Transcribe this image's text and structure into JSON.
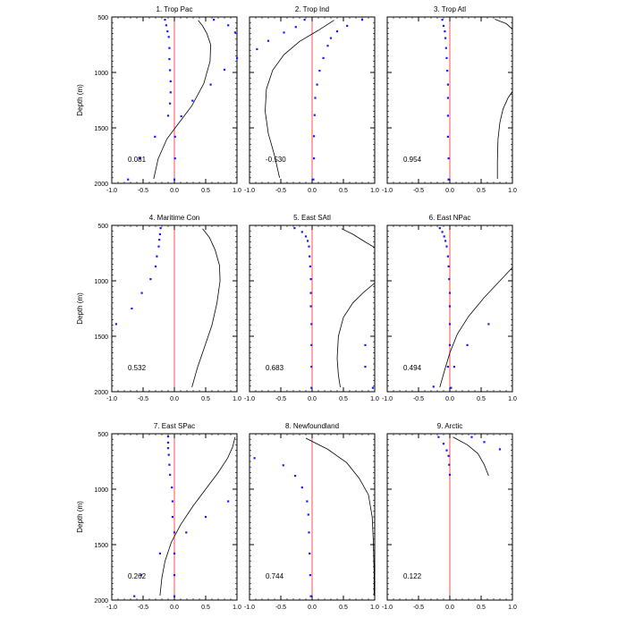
{
  "chart_data": [
    {
      "type": "line",
      "title": "1. Trop Pac",
      "value_label": "0.081",
      "ylabel": "Depth (m)",
      "xlim": [
        -1,
        1
      ],
      "ylim": [
        500,
        2000
      ],
      "y_inverted": true,
      "xticks": [
        "-1.0",
        "-0.5",
        "0.0",
        "0.5",
        "1.0"
      ],
      "yticks": [
        "500",
        "1000",
        "1500",
        "2000"
      ],
      "reference_line_x": 0,
      "line": [
        [
          0.38,
          530
        ],
        [
          0.45,
          580
        ],
        [
          0.52,
          650
        ],
        [
          0.58,
          750
        ],
        [
          0.57,
          900
        ],
        [
          0.47,
          1100
        ],
        [
          0.28,
          1300
        ],
        [
          0.08,
          1450
        ],
        [
          -0.12,
          1600
        ],
        [
          -0.26,
          1780
        ],
        [
          -0.33,
          1960
        ]
      ],
      "points": [
        [
          -0.15,
          525
        ],
        [
          0.63,
          525
        ],
        [
          0.86,
          575
        ],
        [
          -0.13,
          575
        ],
        [
          -0.11,
          630
        ],
        [
          0.97,
          640
        ],
        [
          -0.09,
          680
        ],
        [
          -0.08,
          780
        ],
        [
          1.0,
          870
        ],
        [
          -0.08,
          880
        ],
        [
          -0.07,
          980
        ],
        [
          0.8,
          975
        ],
        [
          -0.06,
          1080
        ],
        [
          0.58,
          1110
        ],
        [
          -0.06,
          1180
        ],
        [
          0.29,
          1255
        ],
        [
          -0.07,
          1280
        ],
        [
          -0.1,
          1390
        ],
        [
          0.11,
          1395
        ],
        [
          0.01,
          1580
        ],
        [
          -0.31,
          1580
        ],
        [
          -0.55,
          1775
        ],
        [
          0.01,
          1775
        ],
        [
          -0.74,
          1965
        ],
        [
          0.0,
          1965
        ]
      ]
    },
    {
      "type": "line",
      "title": "2. Trop Ind",
      "value_label": "-0.530",
      "ylabel": "",
      "xlim": [
        -1,
        1
      ],
      "ylim": [
        500,
        2000
      ],
      "y_inverted": true,
      "xticks": [
        "-1.0",
        "-0.5",
        "0.0",
        "0.5",
        "1.0"
      ],
      "yticks": [
        "500",
        "1000",
        "1500",
        "2000"
      ],
      "reference_line_x": 0,
      "line": [
        [
          0.35,
          530
        ],
        [
          0.1,
          620
        ],
        [
          -0.2,
          720
        ],
        [
          -0.45,
          840
        ],
        [
          -0.63,
          980
        ],
        [
          -0.73,
          1150
        ],
        [
          -0.75,
          1350
        ],
        [
          -0.7,
          1550
        ],
        [
          -0.6,
          1750
        ],
        [
          -0.52,
          1950
        ]
      ],
      "points": [
        [
          -0.12,
          525
        ],
        [
          0.8,
          525
        ],
        [
          0.56,
          580
        ],
        [
          -0.26,
          590
        ],
        [
          0.4,
          630
        ],
        [
          -0.45,
          640
        ],
        [
          0.3,
          690
        ],
        [
          -0.7,
          715
        ],
        [
          0.25,
          760
        ],
        [
          -0.88,
          790
        ],
        [
          0.18,
          870
        ],
        [
          0.12,
          985
        ],
        [
          0.08,
          1110
        ],
        [
          0.05,
          1230
        ],
        [
          0.04,
          1385
        ],
        [
          0.03,
          1575
        ],
        [
          0.03,
          1775
        ],
        [
          0.02,
          1965
        ]
      ]
    },
    {
      "type": "line",
      "title": "3. Trop Atl",
      "value_label": "0.954",
      "ylabel": "",
      "xlim": [
        -1,
        1
      ],
      "ylim": [
        500,
        2000
      ],
      "y_inverted": true,
      "xticks": [
        "-1.0",
        "-0.5",
        "0.0",
        "0.5",
        "1.0"
      ],
      "yticks": [
        "500",
        "1000",
        "1500",
        "2000"
      ],
      "reference_line_x": 0,
      "line": [
        [
          0.72,
          520
        ],
        [
          0.9,
          560
        ],
        [
          1.0,
          610
        ]
      ],
      "line2": [
        [
          1.0,
          1170
        ],
        [
          0.93,
          1230
        ],
        [
          0.85,
          1330
        ],
        [
          0.8,
          1450
        ],
        [
          0.77,
          1600
        ],
        [
          0.76,
          1800
        ],
        [
          0.76,
          1960
        ]
      ],
      "points": [
        [
          -0.12,
          525
        ],
        [
          -0.1,
          580
        ],
        [
          -0.08,
          630
        ],
        [
          -0.07,
          690
        ],
        [
          -0.06,
          780
        ],
        [
          -0.05,
          870
        ],
        [
          -0.04,
          985
        ],
        [
          -0.03,
          1110
        ],
        [
          -0.03,
          1230
        ],
        [
          -0.03,
          1390
        ],
        [
          -0.03,
          1580
        ],
        [
          -0.02,
          1775
        ],
        [
          -0.02,
          1965
        ]
      ]
    },
    {
      "type": "line",
      "title": "4. Maritime Con",
      "value_label": "0.532",
      "ylabel": "Depth (m)",
      "xlim": [
        -1,
        1
      ],
      "ylim": [
        500,
        2000
      ],
      "y_inverted": true,
      "xticks": [
        "-1.0",
        "-0.5",
        "0.0",
        "0.5",
        "1.0"
      ],
      "yticks": [
        "500",
        "1000",
        "1500",
        "2000"
      ],
      "reference_line_x": 0,
      "line": [
        [
          0.45,
          530
        ],
        [
          0.56,
          610
        ],
        [
          0.65,
          720
        ],
        [
          0.72,
          860
        ],
        [
          0.73,
          1000
        ],
        [
          0.68,
          1200
        ],
        [
          0.6,
          1400
        ],
        [
          0.48,
          1600
        ],
        [
          0.37,
          1780
        ],
        [
          0.28,
          1960
        ]
      ],
      "points": [
        [
          -0.22,
          525
        ],
        [
          -0.23,
          580
        ],
        [
          -0.24,
          630
        ],
        [
          -0.25,
          690
        ],
        [
          -0.28,
          780
        ],
        [
          -0.3,
          870
        ],
        [
          -0.38,
          985
        ],
        [
          -0.52,
          1110
        ],
        [
          -0.68,
          1250
        ],
        [
          -0.93,
          1390
        ]
      ]
    },
    {
      "type": "line",
      "title": "5. East SAtl",
      "value_label": "0.683",
      "ylabel": "",
      "xlim": [
        -1,
        1
      ],
      "ylim": [
        500,
        2000
      ],
      "y_inverted": true,
      "xticks": [
        "-1.0",
        "-0.5",
        "0.0",
        "0.5",
        "1.0"
      ],
      "yticks": [
        "500",
        "1000",
        "1500",
        "2000"
      ],
      "reference_line_x": 0,
      "line": [
        [
          0.47,
          530
        ],
        [
          0.65,
          580
        ],
        [
          0.85,
          650
        ],
        [
          1.0,
          700
        ]
      ],
      "line2": [
        [
          1.0,
          1020
        ],
        [
          0.83,
          1100
        ],
        [
          0.65,
          1200
        ],
        [
          0.5,
          1330
        ],
        [
          0.42,
          1500
        ],
        [
          0.4,
          1700
        ],
        [
          0.42,
          1850
        ],
        [
          0.45,
          1960
        ]
      ],
      "points": [
        [
          -0.28,
          525
        ],
        [
          -0.16,
          560
        ],
        [
          -0.1,
          600
        ],
        [
          -0.07,
          640
        ],
        [
          -0.05,
          690
        ],
        [
          -0.04,
          780
        ],
        [
          -0.03,
          870
        ],
        [
          -0.02,
          985
        ],
        [
          -0.02,
          1110
        ],
        [
          -0.02,
          1230
        ],
        [
          -0.01,
          1390
        ],
        [
          -0.01,
          1580
        ],
        [
          -0.01,
          1775
        ],
        [
          -0.01,
          1965
        ],
        [
          0.85,
          1580
        ],
        [
          0.85,
          1775
        ],
        [
          0.97,
          1965
        ]
      ]
    },
    {
      "type": "line",
      "title": "6. East NPac",
      "value_label": "0.494",
      "ylabel": "",
      "xlim": [
        -1,
        1
      ],
      "ylim": [
        500,
        2000
      ],
      "y_inverted": true,
      "xticks": [
        "-1.0",
        "-0.5",
        "0.0",
        "0.5",
        "1.0"
      ],
      "yticks": [
        "500",
        "1000",
        "1500",
        "2000"
      ],
      "reference_line_x": 0,
      "line": [
        [
          1.0,
          880
        ],
        [
          0.8,
          1000
        ],
        [
          0.55,
          1150
        ],
        [
          0.3,
          1320
        ],
        [
          0.12,
          1480
        ],
        [
          0.0,
          1650
        ],
        [
          -0.08,
          1800
        ],
        [
          -0.16,
          1960
        ]
      ],
      "points": [
        [
          -0.16,
          525
        ],
        [
          -0.12,
          560
        ],
        [
          -0.09,
          600
        ],
        [
          -0.07,
          640
        ],
        [
          -0.05,
          690
        ],
        [
          -0.03,
          780
        ],
        [
          -0.02,
          870
        ],
        [
          -0.01,
          985
        ],
        [
          0.0,
          1110
        ],
        [
          0.0,
          1230
        ],
        [
          0.0,
          1390
        ],
        [
          0.0,
          1580
        ],
        [
          0.62,
          1390
        ],
        [
          0.28,
          1580
        ],
        [
          -0.03,
          1775
        ],
        [
          0.07,
          1775
        ],
        [
          -0.26,
          1955
        ],
        [
          0.02,
          1965
        ]
      ]
    },
    {
      "type": "line",
      "title": "7. East SPac",
      "value_label": "0.262",
      "ylabel": "Depth (m)",
      "xlim": [
        -1,
        1
      ],
      "ylim": [
        500,
        2000
      ],
      "y_inverted": true,
      "xticks": [
        "-1.0",
        "-0.5",
        "0.0",
        "0.5",
        "1.0"
      ],
      "yticks": [
        "500",
        "1000",
        "1500",
        "2000"
      ],
      "reference_line_x": 0,
      "line": [
        [
          0.97,
          530
        ],
        [
          0.93,
          620
        ],
        [
          0.85,
          720
        ],
        [
          0.7,
          850
        ],
        [
          0.5,
          1000
        ],
        [
          0.3,
          1150
        ],
        [
          0.1,
          1320
        ],
        [
          -0.05,
          1480
        ],
        [
          -0.15,
          1650
        ],
        [
          -0.2,
          1800
        ],
        [
          -0.23,
          1960
        ]
      ],
      "points": [
        [
          -0.1,
          525
        ],
        [
          -0.1,
          580
        ],
        [
          -0.1,
          630
        ],
        [
          -0.09,
          690
        ],
        [
          -0.08,
          780
        ],
        [
          -0.07,
          870
        ],
        [
          -0.04,
          985
        ],
        [
          0.86,
          1110
        ],
        [
          -0.03,
          1110
        ],
        [
          0.5,
          1250
        ],
        [
          -0.03,
          1250
        ],
        [
          0.19,
          1390
        ],
        [
          0.0,
          1390
        ],
        [
          -0.23,
          1580
        ],
        [
          0.0,
          1580
        ],
        [
          0.0,
          1775
        ],
        [
          -0.53,
          1775
        ],
        [
          0.0,
          1965
        ],
        [
          -0.64,
          1965
        ]
      ]
    },
    {
      "type": "line",
      "title": "8. Newfoundland",
      "value_label": "0.744",
      "ylabel": "",
      "xlim": [
        -1,
        1
      ],
      "ylim": [
        500,
        2000
      ],
      "y_inverted": true,
      "xticks": [
        "-1.0",
        "-0.5",
        "0.0",
        "0.5",
        "1.0"
      ],
      "yticks": [
        "500",
        "1000",
        "1500",
        "2000"
      ],
      "reference_line_x": 0,
      "line": [
        [
          -0.1,
          540
        ],
        [
          0.25,
          640
        ],
        [
          0.55,
          760
        ],
        [
          0.75,
          900
        ],
        [
          0.9,
          1050
        ],
        [
          0.96,
          1250
        ],
        [
          0.98,
          1500
        ],
        [
          0.99,
          1750
        ],
        [
          0.99,
          1960
        ]
      ],
      "points": [
        [
          -0.92,
          720
        ],
        [
          -0.46,
          785
        ],
        [
          -0.27,
          880
        ],
        [
          -0.16,
          985
        ],
        [
          -0.08,
          1110
        ],
        [
          -0.06,
          1230
        ],
        [
          -0.05,
          1390
        ],
        [
          -0.04,
          1580
        ],
        [
          -0.03,
          1775
        ],
        [
          -0.02,
          1965
        ]
      ]
    },
    {
      "type": "line",
      "title": "9. Arctic",
      "value_label": "0.122",
      "ylabel": "",
      "xlim": [
        -1,
        1
      ],
      "ylim": [
        500,
        2000
      ],
      "y_inverted": true,
      "xticks": [
        "-1.0",
        "-0.5",
        "0.0",
        "0.5",
        "1.0"
      ],
      "yticks": [
        "500",
        "1000",
        "1500",
        "2000"
      ],
      "reference_line_x": 0,
      "line": [
        [
          0.05,
          530
        ],
        [
          0.28,
          600
        ],
        [
          0.45,
          680
        ],
        [
          0.55,
          780
        ],
        [
          0.62,
          880
        ]
      ],
      "points": [
        [
          -0.18,
          530
        ],
        [
          0.35,
          530
        ],
        [
          0.55,
          575
        ],
        [
          -0.1,
          590
        ],
        [
          0.8,
          640
        ],
        [
          -0.05,
          650
        ],
        [
          -0.02,
          700
        ],
        [
          -0.01,
          780
        ],
        [
          0.0,
          870
        ]
      ]
    }
  ]
}
